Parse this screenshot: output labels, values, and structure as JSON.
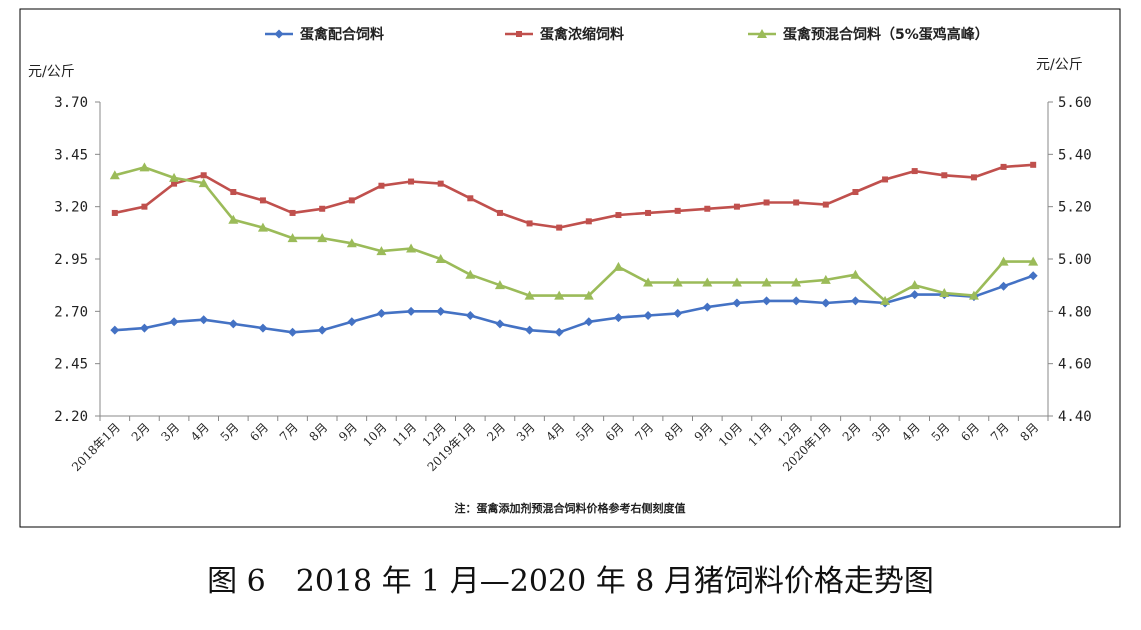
{
  "chart_data": {
    "type": "line",
    "title": "",
    "categories": [
      "2018年1月",
      "2月",
      "3月",
      "4月",
      "5月",
      "6月",
      "7月",
      "8月",
      "9月",
      "10月",
      "11月",
      "12月",
      "2019年1月",
      "2月",
      "3月",
      "4月",
      "5月",
      "6月",
      "7月",
      "8月",
      "9月",
      "10月",
      "11月",
      "12月",
      "2020年1月",
      "2月",
      "3月",
      "4月",
      "5月",
      "6月",
      "7月",
      "8月"
    ],
    "left_axis": {
      "unit": "元/公斤",
      "ylim": [
        2.2,
        3.7
      ],
      "ticks": [
        "3.70",
        "3.45",
        "3.20",
        "2.95",
        "2.70",
        "2.45",
        "2.20"
      ]
    },
    "right_axis": {
      "unit": "元/公斤",
      "ylim": [
        4.4,
        5.6
      ],
      "ticks": [
        "5.60",
        "5.40",
        "5.20",
        "5.00",
        "4.80",
        "4.60",
        "4.40"
      ]
    },
    "series": [
      {
        "name": "蛋禽配合饲料",
        "axis": "left",
        "color": "#4472C4",
        "marker": "diamond",
        "values": [
          2.61,
          2.62,
          2.65,
          2.66,
          2.64,
          2.62,
          2.6,
          2.61,
          2.65,
          2.69,
          2.7,
          2.7,
          2.68,
          2.64,
          2.61,
          2.6,
          2.65,
          2.67,
          2.68,
          2.69,
          2.72,
          2.74,
          2.75,
          2.75,
          2.74,
          2.75,
          2.74,
          2.78,
          2.78,
          2.77,
          2.82,
          2.87
        ]
      },
      {
        "name": "蛋禽浓缩饲料",
        "axis": "left",
        "color": "#C0504D",
        "marker": "square",
        "values": [
          3.17,
          3.2,
          3.31,
          3.35,
          3.27,
          3.23,
          3.17,
          3.19,
          3.23,
          3.3,
          3.32,
          3.31,
          3.24,
          3.17,
          3.12,
          3.1,
          3.13,
          3.16,
          3.17,
          3.18,
          3.19,
          3.2,
          3.22,
          3.22,
          3.21,
          3.27,
          3.33,
          3.37,
          3.35,
          3.34,
          3.39,
          3.4
        ]
      },
      {
        "name": "蛋禽预混合饲料（5%蛋鸡高峰）",
        "axis": "right",
        "color": "#9BBB59",
        "marker": "triangle",
        "values": [
          5.32,
          5.35,
          5.31,
          5.29,
          5.15,
          5.12,
          5.08,
          5.08,
          5.06,
          5.03,
          5.04,
          5.0,
          4.94,
          4.9,
          4.86,
          4.86,
          4.86,
          4.97,
          4.91,
          4.91,
          4.91,
          4.91,
          4.91,
          4.91,
          4.92,
          4.94,
          4.84,
          4.9,
          4.87,
          4.86,
          4.99,
          4.99
        ]
      }
    ],
    "legend_position": "top",
    "note": "注：蛋禽添加剂预混合饲料价格参考右侧刻度值",
    "grid": false
  },
  "caption": "图 6　2018 年 1 月—2020 年 8 月猪饲料价格走势图"
}
